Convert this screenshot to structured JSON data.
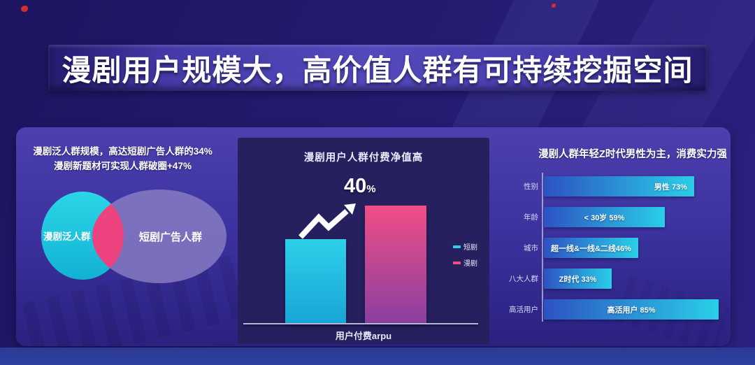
{
  "banner": {
    "title": "漫剧用户规模大，高价值人群有可持续挖掘空间"
  },
  "left_panel": {
    "caption_line1": "漫剧泛人群规模，高达短剧广告人群的34%",
    "caption_line2": "漫剧新题材可实现人群破圈+47%"
  },
  "chart_data": [
    {
      "type": "venn",
      "sets": [
        {
          "label": "漫剧泛人群",
          "color": "#1cc5de"
        },
        {
          "label": "短剧广告人群",
          "color": "#8b80c6"
        }
      ],
      "overlap_color": "#f43f7d",
      "notes": [
        "漫剧泛人群规模，高达短剧广告人群的34%",
        "漫剧新题材可实现人群破圈+47%"
      ]
    },
    {
      "type": "bar",
      "title": "漫剧用户人群付费净值高",
      "categories": [
        "短剧",
        "漫剧"
      ],
      "values": [
        100,
        140
      ],
      "annotation": {
        "value": "40",
        "unit": "%"
      },
      "xlabel": "用户付费arpu",
      "colors": [
        [
          "#2ed0e9",
          "#17a5d6"
        ],
        [
          "#f04e85",
          "#8a3fa0"
        ]
      ],
      "legend_position": "right"
    },
    {
      "type": "bar",
      "orientation": "horizontal",
      "title": "漫剧人群年轻Z时代男性为主，消费实力强",
      "categories": [
        "性别",
        "年龄",
        "城市",
        "八大人群",
        "高活用户"
      ],
      "values": [
        73,
        59,
        46,
        33,
        85
      ],
      "bar_labels": [
        "男性 73%",
        "< 30岁 59%",
        "超一线&一线&二线46%",
        "Z时代 33%",
        "高活用户 85%"
      ],
      "xlim": [
        0,
        100
      ],
      "bar_gradient": [
        "#2d52c2",
        "#29cfe8"
      ]
    }
  ]
}
